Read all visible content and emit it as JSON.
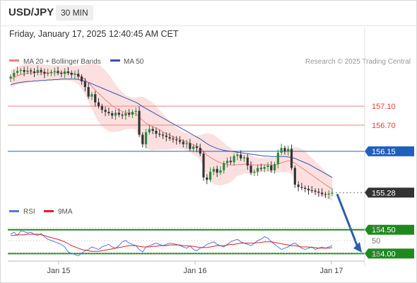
{
  "header": {
    "symbol": "USD/JPY",
    "timeframe": "30 MIN",
    "datetime": "Friday, January 17, 2025 12:40:45 AM CET"
  },
  "chart_data": [
    {
      "type": "line",
      "panel": "price",
      "legend": [
        {
          "label": "MA 20 + Bollinger Bands",
          "color": "#f08080"
        },
        {
          "label": "MA 50",
          "color": "#3355aa"
        }
      ],
      "credit": "Research © 2025 Trading Central",
      "levels": [
        {
          "value": 157.1,
          "label": "157.10",
          "style": "resistance",
          "color": "#f08080"
        },
        {
          "value": 156.7,
          "label": "156.70",
          "style": "resistance",
          "color": "#f08080"
        },
        {
          "value": 156.15,
          "label": "156.15",
          "style": "pivot",
          "color": "#1f5fbf"
        },
        {
          "value": 155.28,
          "label": "155.28",
          "style": "last-price",
          "color": "#333333"
        },
        {
          "value": 154.5,
          "label": "154.50",
          "style": "support",
          "color": "#1e8a1e"
        },
        {
          "value": 154.0,
          "label": "154.00",
          "style": "support",
          "color": "#1e8a1e"
        }
      ],
      "x_ticks": [
        "Jan 15",
        "Jan 16",
        "Jan 17"
      ],
      "ylim": [
        153.8,
        158.2
      ],
      "close": [
        157.72,
        157.8,
        157.84,
        157.86,
        157.82,
        157.85,
        157.83,
        157.8,
        157.86,
        157.82,
        157.78,
        157.8,
        157.82,
        157.84,
        157.8,
        157.78,
        157.83,
        157.8,
        157.76,
        157.78,
        157.72,
        157.62,
        157.5,
        157.3,
        157.35,
        157.18,
        157.1,
        157.02,
        156.98,
        156.95,
        156.9,
        156.96,
        156.92,
        156.9,
        156.95,
        156.92,
        156.98,
        157.0,
        156.5,
        156.3,
        156.55,
        156.62,
        156.58,
        156.52,
        156.5,
        156.48,
        156.45,
        156.42,
        156.4,
        156.38,
        156.35,
        156.3,
        156.32,
        156.2,
        156.25,
        156.22,
        156.1,
        155.6,
        155.55,
        155.72,
        155.78,
        155.7,
        155.75,
        155.9,
        155.95,
        155.92,
        156.05,
        156.08,
        156.0,
        156.02,
        155.85,
        155.7,
        155.72,
        155.8,
        155.78,
        155.82,
        155.85,
        155.75,
        155.88,
        156.12,
        156.22,
        156.15,
        156.2,
        155.8,
        155.45,
        155.4,
        155.38,
        155.36,
        155.33,
        155.32,
        155.3,
        155.28,
        155.25,
        155.24,
        155.26,
        155.28
      ],
      "ma20": [
        157.68,
        157.7,
        157.74,
        157.76,
        157.78,
        157.79,
        157.8,
        157.8,
        157.81,
        157.81,
        157.81,
        157.8,
        157.8,
        157.8,
        157.8,
        157.8,
        157.8,
        157.8,
        157.79,
        157.78,
        157.75,
        157.71,
        157.66,
        157.59,
        157.52,
        157.44,
        157.37,
        157.3,
        157.23,
        157.17,
        157.11,
        157.06,
        157.02,
        156.99,
        156.97,
        156.96,
        156.95,
        156.94,
        156.88,
        156.8,
        156.74,
        156.7,
        156.67,
        156.64,
        156.6,
        156.56,
        156.52,
        156.49,
        156.46,
        156.43,
        156.4,
        156.37,
        156.35,
        156.32,
        156.29,
        156.26,
        156.23,
        156.15,
        156.07,
        156.02,
        155.98,
        155.94,
        155.91,
        155.89,
        155.87,
        155.86,
        155.86,
        155.87,
        155.87,
        155.88,
        155.88,
        155.87,
        155.86,
        155.86,
        155.86,
        155.87,
        155.87,
        155.86,
        155.86,
        155.88,
        155.91,
        155.93,
        155.95,
        155.94,
        155.9,
        155.85,
        155.8,
        155.75,
        155.7,
        155.65,
        155.6,
        155.55,
        155.5,
        155.45,
        155.4,
        155.36
      ],
      "ma50": [
        157.55,
        157.57,
        157.59,
        157.6,
        157.61,
        157.62,
        157.62,
        157.63,
        157.63,
        157.64,
        157.64,
        157.65,
        157.65,
        157.66,
        157.66,
        157.67,
        157.67,
        157.67,
        157.67,
        157.67,
        157.66,
        157.64,
        157.62,
        157.6,
        157.57,
        157.54,
        157.51,
        157.48,
        157.45,
        157.42,
        157.39,
        157.36,
        157.33,
        157.3,
        157.27,
        157.24,
        157.21,
        157.18,
        157.14,
        157.09,
        157.05,
        157.01,
        156.97,
        156.93,
        156.89,
        156.85,
        156.81,
        156.77,
        156.73,
        156.69,
        156.65,
        156.61,
        156.57,
        156.53,
        156.49,
        156.45,
        156.41,
        156.36,
        156.31,
        156.27,
        156.24,
        156.21,
        156.19,
        156.17,
        156.16,
        156.15,
        156.14,
        156.13,
        156.12,
        156.11,
        156.1,
        156.09,
        156.08,
        156.07,
        156.06,
        156.05,
        156.05,
        156.04,
        156.04,
        156.04,
        156.04,
        156.04,
        156.03,
        156.02,
        156.0,
        155.97,
        155.94,
        155.91,
        155.88,
        155.84,
        155.8,
        155.76,
        155.72,
        155.68,
        155.64,
        155.6
      ],
      "bb_width": [
        0.18,
        0.18,
        0.19,
        0.2,
        0.2,
        0.2,
        0.19,
        0.18,
        0.17,
        0.17,
        0.17,
        0.17,
        0.16,
        0.16,
        0.16,
        0.16,
        0.16,
        0.16,
        0.16,
        0.17,
        0.2,
        0.25,
        0.32,
        0.4,
        0.48,
        0.55,
        0.6,
        0.62,
        0.62,
        0.6,
        0.56,
        0.5,
        0.45,
        0.4,
        0.36,
        0.34,
        0.33,
        0.34,
        0.42,
        0.5,
        0.52,
        0.52,
        0.5,
        0.46,
        0.42,
        0.38,
        0.34,
        0.3,
        0.26,
        0.22,
        0.2,
        0.18,
        0.18,
        0.18,
        0.2,
        0.22,
        0.26,
        0.36,
        0.46,
        0.5,
        0.52,
        0.5,
        0.48,
        0.44,
        0.4,
        0.36,
        0.3,
        0.24,
        0.22,
        0.2,
        0.2,
        0.2,
        0.18,
        0.16,
        0.15,
        0.15,
        0.15,
        0.16,
        0.16,
        0.18,
        0.2,
        0.22,
        0.24,
        0.28,
        0.34,
        0.38,
        0.4,
        0.4,
        0.38,
        0.36,
        0.34,
        0.32,
        0.3,
        0.28,
        0.26,
        0.25
      ],
      "projection": {
        "from": 155.28,
        "to": 154.05
      }
    },
    {
      "type": "line",
      "panel": "rsi",
      "legend": [
        {
          "label": "RSI",
          "color": "#5577dd"
        },
        {
          "label": "9MA",
          "color": "#dd2222"
        }
      ],
      "y_ticks": [
        70,
        50,
        30
      ],
      "ylim": [
        20,
        80
      ],
      "rsi": [
        60,
        63,
        58,
        65,
        64,
        62,
        63,
        60,
        58,
        61,
        56,
        52,
        50,
        48,
        46,
        44,
        40,
        32,
        30,
        28,
        26,
        30,
        34,
        36,
        40,
        38,
        36,
        40,
        42,
        44,
        40,
        38,
        42,
        48,
        50,
        46,
        44,
        42,
        36,
        32,
        40,
        42,
        44,
        46,
        44,
        42,
        44,
        46,
        45,
        44,
        42,
        40,
        38,
        42,
        36,
        34,
        38,
        40,
        44,
        46,
        48,
        44,
        42,
        40,
        44,
        48,
        50,
        52,
        48,
        46,
        44,
        42,
        46,
        50,
        52,
        56,
        54,
        48,
        44,
        40,
        36,
        38,
        40,
        44,
        46,
        42,
        38,
        36,
        38,
        40,
        36,
        38,
        40,
        38,
        40,
        42
      ],
      "ma9": [
        58,
        58,
        59,
        59,
        59,
        60,
        60,
        60,
        60,
        59,
        58,
        56,
        55,
        53,
        52,
        50,
        48,
        45,
        42,
        40,
        38,
        36,
        35,
        34,
        33,
        33,
        33,
        34,
        35,
        36,
        37,
        38,
        39,
        40,
        41,
        42,
        42,
        42,
        41,
        40,
        40,
        40,
        41,
        41,
        42,
        42,
        42,
        43,
        43,
        43,
        43,
        42,
        42,
        41,
        41,
        40,
        39,
        39,
        39,
        40,
        41,
        42,
        42,
        42,
        43,
        44,
        44,
        45,
        46,
        46,
        46,
        46,
        46,
        47,
        47,
        48,
        48,
        48,
        47,
        46,
        45,
        44,
        43,
        42,
        42,
        41,
        40,
        40,
        40,
        39,
        39,
        38,
        38,
        38,
        38,
        39
      ]
    }
  ]
}
